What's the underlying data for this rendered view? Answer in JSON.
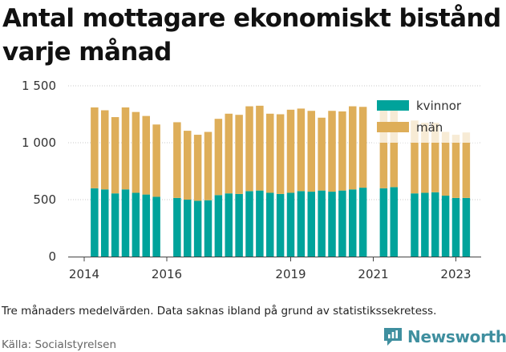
{
  "title": "Antal mottagare ekonomiskt bistånd varje månad",
  "note": "Tre månaders medelvärden. Data saknas ibland på grund av statistikssekretess.",
  "source": "Källa: Socialstyrelsen",
  "brand": {
    "name": "Newsworthy",
    "icon": "newsworthy-logo-icon"
  },
  "colors": {
    "kvinnor": "#00a39b",
    "man": "#deae59"
  },
  "chart_data": {
    "type": "bar",
    "stacked": true,
    "title": "Antal mottagare ekonomiskt bistånd varje månad",
    "xlabel": "",
    "ylabel": "",
    "ylim": [
      0,
      1500
    ],
    "yticks": [
      0,
      500,
      1000,
      1500
    ],
    "ytick_labels": [
      "0",
      "500",
      "1 000",
      "1 500"
    ],
    "xticks": [
      2014,
      2016,
      2019,
      2021,
      2023
    ],
    "xtick_labels": [
      "2014",
      "2016",
      "2019",
      "2021",
      "2023"
    ],
    "grid": "horizontal dotted",
    "legend": {
      "position": "top-right",
      "entries": [
        "kvinnor",
        "män"
      ]
    },
    "x": [
      2014.25,
      2014.5,
      2014.75,
      2015.0,
      2015.25,
      2015.5,
      2015.75,
      2016.25,
      2016.5,
      2016.75,
      2017.0,
      2017.25,
      2017.5,
      2017.75,
      2018.0,
      2018.25,
      2018.5,
      2018.75,
      2019.0,
      2019.25,
      2019.5,
      2019.75,
      2020.0,
      2020.25,
      2020.5,
      2020.75,
      2021.25,
      2021.5,
      2022.0,
      2022.25,
      2022.5,
      2022.75,
      2023.0,
      2023.25
    ],
    "series": [
      {
        "name": "kvinnor",
        "values": [
          600,
          590,
          555,
          590,
          560,
          545,
          525,
          515,
          500,
          490,
          495,
          540,
          555,
          550,
          575,
          580,
          560,
          550,
          560,
          575,
          570,
          580,
          570,
          580,
          590,
          605,
          600,
          610,
          555,
          560,
          565,
          535,
          515,
          515
        ]
      },
      {
        "name": "män",
        "values": [
          710,
          695,
          670,
          720,
          710,
          690,
          635,
          665,
          605,
          580,
          600,
          670,
          700,
          695,
          745,
          745,
          695,
          700,
          730,
          725,
          710,
          640,
          710,
          695,
          730,
          710,
          700,
          680,
          640,
          615,
          610,
          560,
          555,
          575
        ]
      }
    ]
  }
}
